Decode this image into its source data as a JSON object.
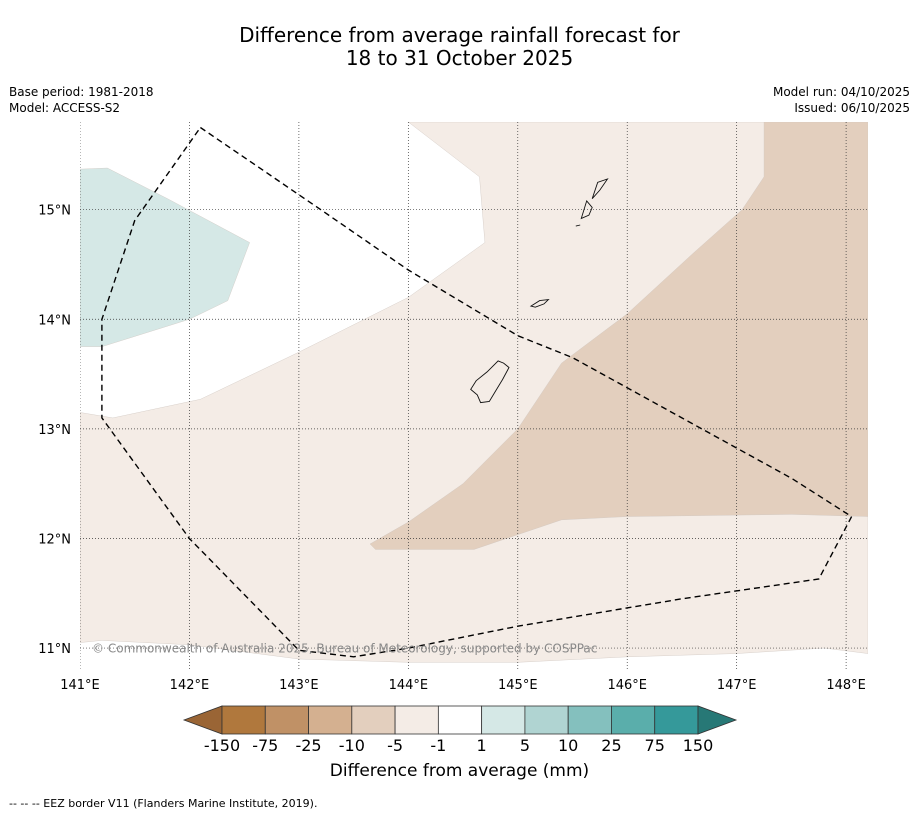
{
  "title": {
    "line1": "Difference from average rainfall forecast for",
    "line2": "18 to 31 October 2025"
  },
  "meta": {
    "base_period": "Base period: 1981-2018",
    "model": "Model: ACCESS-S2",
    "model_run": "Model run: 04/10/2025",
    "issued": "Issued: 06/10/2025"
  },
  "map": {
    "lon_range": [
      141,
      148.2
    ],
    "lat_range": [
      10.8,
      15.8
    ],
    "lon_ticks": [
      "141°E",
      "142°E",
      "143°E",
      "144°E",
      "145°E",
      "146°E",
      "147°E",
      "148°E"
    ],
    "lat_ticks": [
      "15°N",
      "14°N",
      "13°N",
      "12°N",
      "11°N"
    ],
    "copyright": "© Commonwealth of Australia 2025, Bureau of Meteorology, supported by COSPPac",
    "eez_border": [
      [
        142.1,
        15.75
      ],
      [
        143.2,
        15.0
      ],
      [
        144.0,
        14.45
      ],
      [
        145.0,
        13.85
      ],
      [
        145.5,
        13.65
      ],
      [
        146.5,
        13.1
      ],
      [
        147.5,
        12.55
      ],
      [
        148.05,
        12.2
      ],
      [
        147.75,
        11.63
      ],
      [
        146.5,
        11.45
      ],
      [
        145.0,
        11.2
      ],
      [
        144.0,
        11.0
      ],
      [
        143.5,
        10.92
      ],
      [
        143.0,
        10.98
      ],
      [
        142.0,
        12.0
      ],
      [
        141.2,
        13.1
      ],
      [
        141.2,
        14.0
      ],
      [
        141.5,
        14.9
      ],
      [
        142.1,
        15.75
      ]
    ],
    "islands": [
      {
        "name": "Guam",
        "path": [
          [
            144.62,
            13.44
          ],
          [
            144.72,
            13.52
          ],
          [
            144.82,
            13.62
          ],
          [
            144.87,
            13.6
          ],
          [
            144.92,
            13.56
          ],
          [
            144.86,
            13.45
          ],
          [
            144.8,
            13.35
          ],
          [
            144.74,
            13.25
          ],
          [
            144.66,
            13.24
          ],
          [
            144.63,
            13.31
          ],
          [
            144.57,
            13.36
          ],
          [
            144.62,
            13.44
          ]
        ]
      },
      {
        "name": "Rota",
        "path": [
          [
            145.12,
            14.12
          ],
          [
            145.2,
            14.17
          ],
          [
            145.28,
            14.18
          ],
          [
            145.24,
            14.14
          ],
          [
            145.16,
            14.11
          ],
          [
            145.12,
            14.12
          ]
        ]
      },
      {
        "name": "Tinian",
        "path": [
          [
            145.58,
            14.92
          ],
          [
            145.63,
            15.08
          ],
          [
            145.68,
            15.02
          ],
          [
            145.65,
            14.95
          ],
          [
            145.58,
            14.92
          ]
        ]
      },
      {
        "name": "Saipan",
        "path": [
          [
            145.68,
            15.1
          ],
          [
            145.73,
            15.25
          ],
          [
            145.82,
            15.28
          ],
          [
            145.75,
            15.18
          ],
          [
            145.68,
            15.1
          ]
        ]
      },
      {
        "name": "Aguijan",
        "path": [
          [
            145.53,
            14.85
          ],
          [
            145.57,
            14.86
          ]
        ]
      }
    ],
    "regions": [
      {
        "class": "-5 to -1",
        "color": "#f4ece6",
        "points": [
          [
            141.0,
            13.15
          ],
          [
            141.3,
            13.1
          ],
          [
            142.1,
            13.27
          ],
          [
            143.0,
            13.7
          ],
          [
            144.0,
            14.2
          ],
          [
            144.7,
            14.7
          ],
          [
            144.65,
            15.3
          ],
          [
            144.0,
            15.8
          ],
          [
            148.2,
            15.8
          ],
          [
            148.2,
            10.95
          ],
          [
            147.8,
            11.0
          ],
          [
            147.0,
            10.95
          ],
          [
            146.0,
            10.92
          ],
          [
            145.0,
            10.87
          ],
          [
            144.0,
            10.87
          ],
          [
            143.0,
            10.9
          ],
          [
            142.0,
            11.03
          ],
          [
            141.2,
            11.07
          ],
          [
            141.0,
            11.05
          ]
        ]
      },
      {
        "class": "-10 to -5",
        "color": "#e3cfbe",
        "points": [
          [
            147.25,
            15.8
          ],
          [
            148.2,
            15.8
          ],
          [
            148.2,
            12.2
          ],
          [
            147.5,
            12.22
          ],
          [
            146.0,
            12.2
          ],
          [
            145.4,
            12.17
          ],
          [
            144.6,
            11.9
          ],
          [
            143.7,
            11.9
          ],
          [
            143.65,
            11.95
          ],
          [
            144.0,
            12.15
          ],
          [
            144.5,
            12.5
          ],
          [
            145.0,
            13.0
          ],
          [
            145.4,
            13.6
          ],
          [
            146.0,
            14.05
          ],
          [
            146.6,
            14.6
          ],
          [
            147.05,
            15.0
          ],
          [
            147.25,
            15.3
          ]
        ]
      },
      {
        "class": "1 to 5",
        "color": "#d5e8e6",
        "points": [
          [
            141.0,
            15.37
          ],
          [
            141.25,
            15.38
          ],
          [
            141.8,
            15.1
          ],
          [
            142.55,
            14.7
          ],
          [
            142.35,
            14.17
          ],
          [
            142.0,
            14.0
          ],
          [
            141.2,
            13.75
          ],
          [
            141.0,
            13.75
          ]
        ]
      }
    ]
  },
  "colorbar": {
    "title": "Difference from average (mm)",
    "labels": [
      "-150",
      "-75",
      "-25",
      "-10",
      "-5",
      "-1",
      "1",
      "5",
      "10",
      "25",
      "75",
      "150"
    ],
    "colors": [
      "#9a6535",
      "#b0783d",
      "#c09166",
      "#d4b090",
      "#e3cfbe",
      "#f4ece6",
      "#ffffff",
      "#d5e8e6",
      "#b0d4d2",
      "#84c0be",
      "#5aaeab",
      "#35999a",
      "#277876"
    ]
  },
  "footer": "--  --  -- EEZ border V11 (Flanders Marine Institute, 2019)."
}
